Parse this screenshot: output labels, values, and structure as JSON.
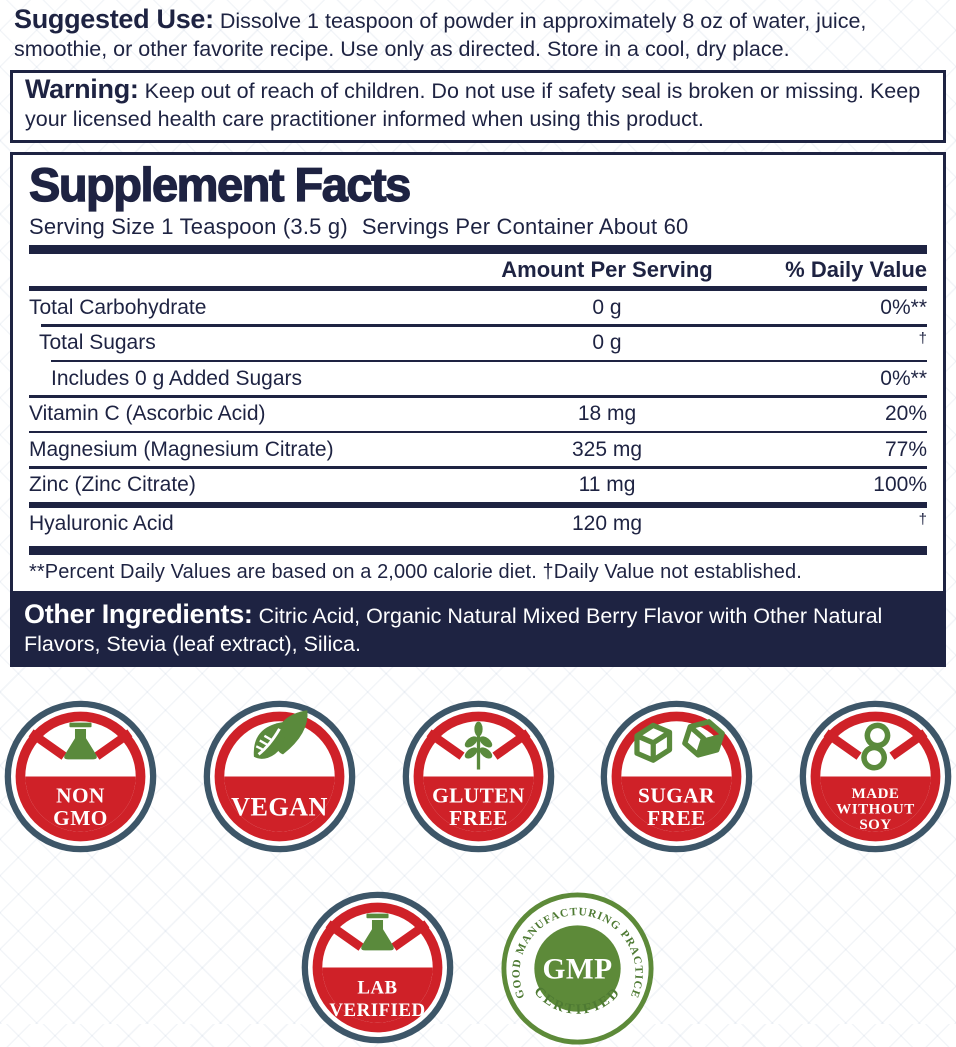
{
  "suggested_use": {
    "label": "Suggested Use:",
    "text": "Dissolve 1 teaspoon of powder in approximately 8 oz of water, juice, smoothie, or other favorite recipe. Use only as directed. Store in a cool, dry place."
  },
  "warning": {
    "label": "Warning:",
    "text": "Keep out of reach of children. Do not use if safety seal is broken or missing. Keep your licensed health care practitioner informed when using this product."
  },
  "supplement_facts": {
    "title": "Supplement Facts",
    "serving_size": "Serving Size 1 Teaspoon (3.5 g)",
    "servings_per_container": "Servings Per Container About 60",
    "columns": {
      "amount_header": "Amount Per Serving",
      "dv_header": "% Daily Value"
    },
    "rows": [
      {
        "name": "Total Carbohydrate",
        "amount": "0 g",
        "dv": "0%**",
        "indent": 0,
        "rule": "none"
      },
      {
        "name": "Total Sugars",
        "amount": "0 g",
        "dv": "†",
        "indent": 1,
        "rule": "hairline"
      },
      {
        "name": "Includes 0 g Added Sugars",
        "amount": "",
        "dv": "0%**",
        "indent": 2,
        "rule": "hairline"
      },
      {
        "name": "Vitamin C (Ascorbic Acid)",
        "amount": "18 mg",
        "dv": "20%",
        "indent": 0,
        "rule": "hairline"
      },
      {
        "name": "Magnesium (Magnesium Citrate)",
        "amount": "325 mg",
        "dv": "77%",
        "indent": 0,
        "rule": "hairline"
      },
      {
        "name": "Zinc (Zinc Citrate)",
        "amount": "11 mg",
        "dv": "100%",
        "indent": 0,
        "rule": "hairline"
      },
      {
        "name": "Hyaluronic Acid",
        "amount": "120 mg",
        "dv": "†",
        "indent": 0,
        "rule": "medium"
      }
    ],
    "footnote": "**Percent Daily Values are based on a 2,000 calorie diet. †Daily Value not established."
  },
  "other_ingredients": {
    "label": "Other Ingredients:",
    "text": "Citric Acid, Organic Natural Mixed Berry Flavor with Other Natural Flavors, Stevia (leaf extract), Silica."
  },
  "badges": {
    "row1": [
      {
        "icon": "flask-icon",
        "slash": true,
        "lines": [
          "NON",
          "GMO"
        ]
      },
      {
        "icon": "leaves-icon",
        "slash": false,
        "lines": [
          "VEGAN"
        ]
      },
      {
        "icon": "wheat-icon",
        "slash": true,
        "lines": [
          "GLUTEN",
          "FREE"
        ]
      },
      {
        "icon": "sugar-cubes-icon",
        "slash": false,
        "lines": [
          "SUGAR",
          "FREE"
        ]
      },
      {
        "icon": "soybean-icon",
        "slash": true,
        "lines": [
          "MADE",
          "WITHOUT",
          "SOY"
        ]
      }
    ],
    "row2": [
      {
        "icon": "flask-icon",
        "slash": true,
        "lines": [
          "LAB",
          "VERIFIED"
        ]
      }
    ],
    "gmp": {
      "top_text": "GOOD MANUFACTURING PRACTICE",
      "center_text": "GMP",
      "bottom_text": "CERTIFIED"
    }
  },
  "colors": {
    "navy": "#1e2342",
    "red": "#cf2128",
    "ring_slate": "#3d5668",
    "green": "#5a8a3c",
    "gmp_green": "#5d8a39"
  }
}
